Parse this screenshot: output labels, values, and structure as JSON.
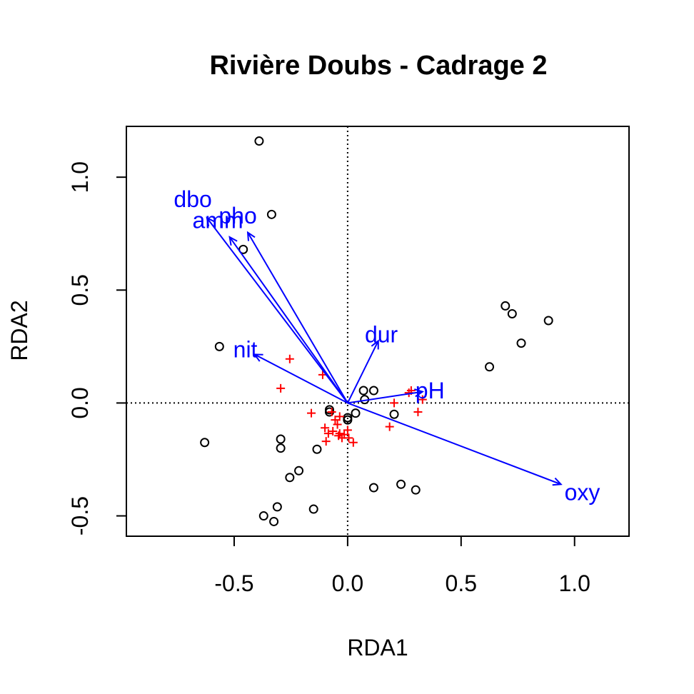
{
  "chart_data": {
    "type": "scatter",
    "title": "Rivière Doubs - Cadrage 2",
    "xlabel": "RDA1",
    "ylabel": "RDA2",
    "xlim": [
      -0.975,
      1.24
    ],
    "ylim": [
      -0.59,
      1.225
    ],
    "xticks": [
      -0.5,
      0.0,
      0.5,
      1.0
    ],
    "xtick_labels": [
      "-0.5",
      "0.0",
      "0.5",
      "1.0"
    ],
    "yticks": [
      -0.5,
      0.0,
      0.5,
      1.0
    ],
    "ytick_labels": [
      "-0.5",
      "0.0",
      "0.5",
      "1.0"
    ],
    "reference_lines": {
      "x": 0,
      "y": 0,
      "style": "dotted"
    },
    "colors": {
      "sites": "#000000",
      "species": "#ff0000",
      "arrows": "#0000ff"
    },
    "series": [
      {
        "marker": "circle",
        "color": "#000000",
        "points": [
          [
            -0.39,
            1.16
          ],
          [
            -0.335,
            0.835
          ],
          [
            -0.46,
            0.68
          ],
          [
            -0.565,
            0.25
          ],
          [
            -0.63,
            -0.175
          ],
          [
            -0.295,
            -0.16
          ],
          [
            -0.295,
            -0.2
          ],
          [
            -0.215,
            -0.3
          ],
          [
            -0.255,
            -0.33
          ],
          [
            -0.135,
            -0.205
          ],
          [
            -0.08,
            -0.03
          ],
          [
            -0.08,
            -0.04
          ],
          [
            0.07,
            0.055
          ],
          [
            0.115,
            0.055
          ],
          [
            0.075,
            0.015
          ],
          [
            0.035,
            -0.045
          ],
          [
            0.0,
            -0.065
          ],
          [
            0.0,
            -0.075
          ],
          [
            0.205,
            -0.05
          ],
          [
            0.115,
            -0.375
          ],
          [
            0.235,
            -0.36
          ],
          [
            0.3,
            -0.385
          ],
          [
            -0.31,
            -0.46
          ],
          [
            -0.37,
            -0.5
          ],
          [
            -0.325,
            -0.525
          ],
          [
            -0.15,
            -0.47
          ],
          [
            0.625,
            0.16
          ],
          [
            0.695,
            0.43
          ],
          [
            0.725,
            0.395
          ],
          [
            0.765,
            0.265
          ],
          [
            0.885,
            0.365
          ]
        ]
      },
      {
        "marker": "plus",
        "color": "#ff0000",
        "points": [
          [
            -0.255,
            0.195
          ],
          [
            -0.295,
            0.065
          ],
          [
            -0.11,
            0.125
          ],
          [
            -0.16,
            -0.045
          ],
          [
            -0.1,
            -0.11
          ],
          [
            -0.07,
            -0.04
          ],
          [
            -0.055,
            -0.075
          ],
          [
            -0.035,
            -0.06
          ],
          [
            -0.045,
            -0.095
          ],
          [
            -0.085,
            -0.135
          ],
          [
            -0.065,
            -0.125
          ],
          [
            -0.04,
            -0.145
          ],
          [
            -0.035,
            -0.135
          ],
          [
            -0.025,
            -0.155
          ],
          [
            -0.015,
            -0.14
          ],
          [
            0.0,
            -0.12
          ],
          [
            0.005,
            -0.155
          ],
          [
            0.025,
            -0.175
          ],
          [
            -0.095,
            -0.17
          ],
          [
            0.205,
            0.0
          ],
          [
            0.27,
            0.045
          ],
          [
            0.28,
            0.055
          ],
          [
            0.33,
            0.015
          ],
          [
            0.31,
            -0.04
          ],
          [
            0.185,
            -0.105
          ]
        ]
      }
    ],
    "arrows": [
      {
        "label": "dbo",
        "x": -0.62,
        "y": 0.82
      },
      {
        "label": "amm",
        "x": -0.52,
        "y": 0.735
      },
      {
        "label": "pho",
        "x": -0.44,
        "y": 0.755
      },
      {
        "label": "nit",
        "x": -0.41,
        "y": 0.215
      },
      {
        "label": "dur",
        "x": 0.135,
        "y": 0.275
      },
      {
        "label": "pH",
        "x": 0.33,
        "y": 0.05
      },
      {
        "label": "oxy",
        "x": 0.94,
        "y": -0.36
      }
    ]
  }
}
